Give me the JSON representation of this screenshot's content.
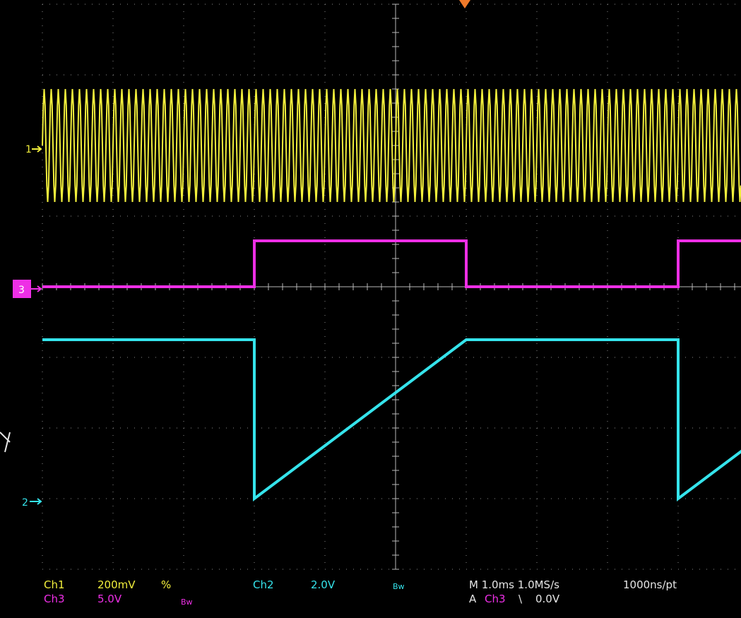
{
  "colors": {
    "background": "#000000",
    "grid": "#8a8a8a",
    "ch1": "#f2ef3c",
    "ch2": "#35e4ec",
    "ch3": "#ee2fe6",
    "trigger_marker": "#f07a2a",
    "side_marker": "#e6e6e6"
  },
  "channel_markers": {
    "ch1": "1",
    "ch2": "2",
    "ch3": "3"
  },
  "readout": {
    "ch1_label": "Ch1",
    "ch1_scale": "200mV",
    "ch1_coupling": "%",
    "ch2_label": "Ch2",
    "ch2_scale": "2.0V",
    "ch2_bw": "Bw",
    "ch3_label": "Ch3",
    "ch3_scale": "5.0V",
    "ch3_bw": "Bw",
    "timebase": "M 1.0ms 1.0MS/s",
    "record": "1000ns/pt",
    "trigger_prefix": "A",
    "trigger_source": "Ch3",
    "trigger_slope": "\\",
    "trigger_level": "0.0V"
  },
  "acquisition": {
    "ch1_cycles_on_screen": 100,
    "ch3_pulse_high_divisions": [
      [
        3,
        6
      ],
      [
        9,
        10
      ]
    ],
    "ch2_ramp_start_division": 3,
    "ch2_ramp_end_division": 6,
    "ch2_period_divisions": 6
  },
  "chart_data": {
    "type": "line",
    "title": "",
    "xlabel": "",
    "ylabel": "",
    "grid": true,
    "x_divisions": 10,
    "y_divisions": 8,
    "series": [
      {
        "name": "Ch1",
        "shape": "sine",
        "amplitude_divisions": 0.8,
        "offset_division": 6
      },
      {
        "name": "Ch3",
        "shape": "pulse",
        "low_division": 4,
        "high_division": 4.65
      },
      {
        "name": "Ch2",
        "shape": "ramp",
        "high_division": 3.25,
        "low_division": 1
      }
    ]
  }
}
